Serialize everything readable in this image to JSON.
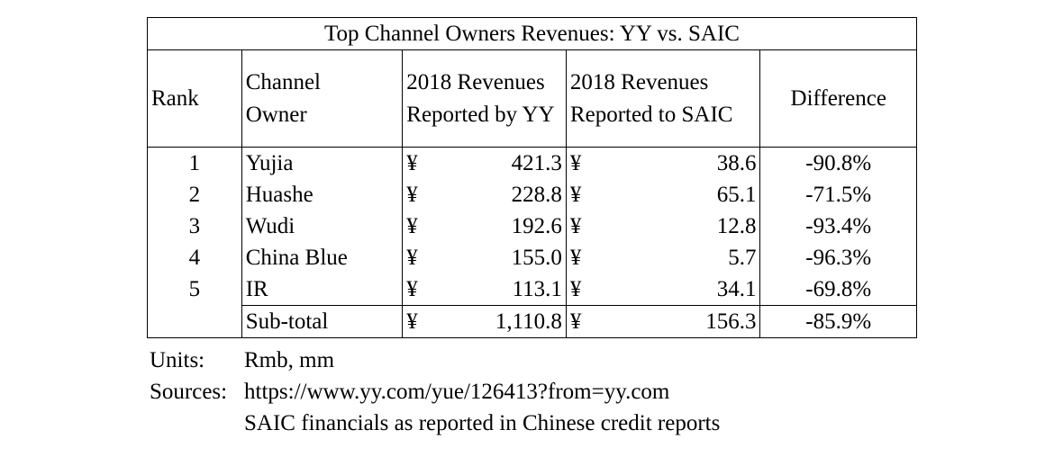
{
  "table": {
    "title": "Top Channel Owners Revenues: YY vs. SAIC",
    "headers": {
      "rank": "Rank",
      "owner_line1": "Channel",
      "owner_line2": "Owner",
      "yy_line1": "2018 Revenues",
      "yy_line2": "Reported by YY",
      "saic_line1": "2018 Revenues",
      "saic_line2": "Reported to SAIC",
      "difference": "Difference"
    },
    "currency_symbol": "¥",
    "rows": [
      {
        "rank": "1",
        "owner": "Yujia",
        "yy": "421.3",
        "saic": "38.6",
        "diff": "-90.8%"
      },
      {
        "rank": "2",
        "owner": "Huashe",
        "yy": "228.8",
        "saic": "65.1",
        "diff": "-71.5%"
      },
      {
        "rank": "3",
        "owner": "Wudi",
        "yy": "192.6",
        "saic": "12.8",
        "diff": "-93.4%"
      },
      {
        "rank": "4",
        "owner": "China Blue",
        "yy": "155.0",
        "saic": "5.7",
        "diff": "-96.3%"
      },
      {
        "rank": "5",
        "owner": "IR",
        "yy": "113.1",
        "saic": "34.1",
        "diff": "-69.8%"
      }
    ],
    "subtotal": {
      "rank": "",
      "owner": "Sub-total",
      "yy": "1,110.8",
      "saic": "156.3",
      "diff": "-85.9%"
    }
  },
  "notes": {
    "units_label": "Units:",
    "units_value": "Rmb, mm",
    "sources_label": "Sources:",
    "source_1": "https://www.yy.com/yue/126413?from=yy.com",
    "source_2": "SAIC financials as reported in Chinese credit reports"
  }
}
